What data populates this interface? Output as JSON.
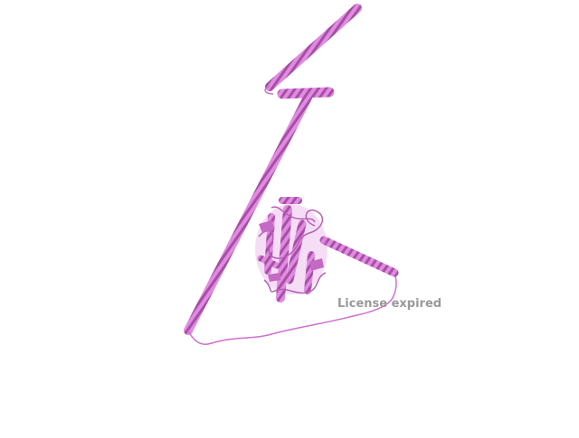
{
  "viewer": {
    "watermark": "License expired",
    "colors": {
      "background": "#ffffff",
      "helix_light": "#e28ae2",
      "helix_dark": "#a451a4",
      "loop": "#cf6fcf",
      "watermark": "#9a9a9a"
    }
  }
}
